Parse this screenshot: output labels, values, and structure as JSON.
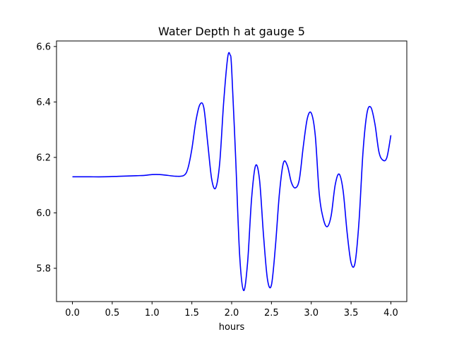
{
  "chart_data": {
    "type": "line",
    "title": "Water Depth h at gauge 5",
    "xlabel": "hours",
    "ylabel": "",
    "xlim": [
      -0.2,
      4.2
    ],
    "ylim": [
      5.68,
      6.62
    ],
    "x_ticks": [
      0.0,
      0.5,
      1.0,
      1.5,
      2.0,
      2.5,
      3.0,
      3.5,
      4.0
    ],
    "x_tick_labels": [
      "0.0",
      "0.5",
      "1.0",
      "1.5",
      "2.0",
      "2.5",
      "3.0",
      "3.5",
      "4.0"
    ],
    "y_ticks": [
      5.8,
      6.0,
      6.2,
      6.4,
      6.6
    ],
    "y_tick_labels": [
      "5.8",
      "6.0",
      "6.2",
      "6.4",
      "6.6"
    ],
    "grid": false,
    "series": [
      {
        "color": "#0000ff",
        "x": [
          0.0,
          0.2,
          0.4,
          0.6,
          0.8,
          0.9,
          1.0,
          1.1,
          1.2,
          1.3,
          1.4,
          1.45,
          1.5,
          1.55,
          1.6,
          1.65,
          1.7,
          1.75,
          1.8,
          1.85,
          1.9,
          1.95,
          1.98,
          2.0,
          2.05,
          2.1,
          2.15,
          2.2,
          2.25,
          2.3,
          2.35,
          2.4,
          2.45,
          2.5,
          2.55,
          2.6,
          2.65,
          2.7,
          2.75,
          2.8,
          2.85,
          2.9,
          2.95,
          3.0,
          3.05,
          3.1,
          3.15,
          3.2,
          3.25,
          3.3,
          3.35,
          3.4,
          3.45,
          3.5,
          3.55,
          3.6,
          3.65,
          3.7,
          3.75,
          3.8,
          3.85,
          3.9,
          3.95,
          4.0
        ],
        "y": [
          6.13,
          6.13,
          6.13,
          6.132,
          6.134,
          6.135,
          6.138,
          6.138,
          6.135,
          6.132,
          6.135,
          6.16,
          6.23,
          6.33,
          6.39,
          6.38,
          6.25,
          6.12,
          6.09,
          6.18,
          6.4,
          6.56,
          6.57,
          6.52,
          6.2,
          5.85,
          5.72,
          5.82,
          6.05,
          6.17,
          6.12,
          5.92,
          5.76,
          5.74,
          5.88,
          6.07,
          6.18,
          6.17,
          6.11,
          6.09,
          6.12,
          6.24,
          6.34,
          6.36,
          6.28,
          6.07,
          5.98,
          5.95,
          5.99,
          6.1,
          6.14,
          6.08,
          5.93,
          5.82,
          5.82,
          5.97,
          6.22,
          6.36,
          6.38,
          6.32,
          6.22,
          6.19,
          6.2,
          6.28
        ]
      }
    ]
  }
}
